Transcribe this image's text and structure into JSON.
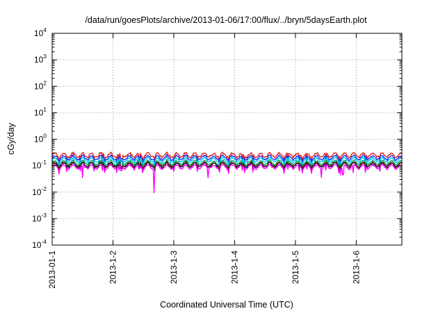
{
  "chart_data": {
    "type": "line",
    "title": "/data/run/goesPlots/archive/2013-01-06/17:00/flux/../bryn/5daysEarth.plot",
    "xlabel": "Coordinated Universal Time (UTC)",
    "ylabel": "cGy/day",
    "yscale": "log",
    "ylim": [
      0.0001,
      10000
    ],
    "xlim": [
      0,
      5.75
    ],
    "grid": true,
    "ytick_labels": [
      {
        "base": "10",
        "exp": "-4"
      },
      {
        "base": "10",
        "exp": "-3"
      },
      {
        "base": "10",
        "exp": "-2"
      },
      {
        "base": "10",
        "exp": "-1"
      },
      {
        "base": "10",
        "exp": "0"
      },
      {
        "base": "10",
        "exp": "1"
      },
      {
        "base": "10",
        "exp": "2"
      },
      {
        "base": "10",
        "exp": "3"
      },
      {
        "base": "10",
        "exp": "4"
      }
    ],
    "x_ticks": [
      0,
      1,
      2,
      3,
      4,
      5
    ],
    "x_tick_labels": [
      "2013-01-1",
      "2013-1-2",
      "2013-1-3",
      "2013-1-4",
      "2013-1-5",
      "2013-1-6"
    ],
    "series": [
      {
        "color": "#e0201c",
        "level": 0.25
      },
      {
        "color": "#1a2ff0",
        "level": 0.2
      },
      {
        "color": "#00c8f0",
        "level": 0.165
      },
      {
        "color": "#00a060",
        "level": 0.13
      },
      {
        "color": "#7a1a1a",
        "level": 0.112
      },
      {
        "color": "#202020",
        "level": 0.105
      },
      {
        "color": "#ff00ff",
        "level": 0.09
      }
    ],
    "dips": [
      {
        "x": 0.5,
        "value": 0.035
      },
      {
        "x": 1.68,
        "value": 0.0095
      },
      {
        "x": 2.56,
        "value": 0.035
      },
      {
        "x": 4.43,
        "value": 0.036
      },
      {
        "x": 4.78,
        "value": 0.045
      },
      {
        "x": 4.95,
        "value": 0.055
      }
    ]
  }
}
